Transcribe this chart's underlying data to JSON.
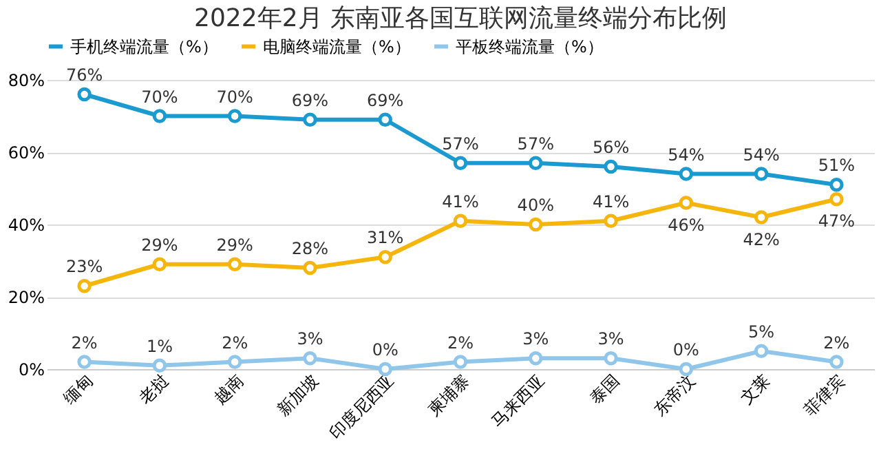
{
  "chart_data": {
    "type": "line",
    "title": "2022年2月 东南亚各国互联网流量终端分布比例",
    "categories": [
      "缅甸",
      "老挝",
      "越南",
      "新加坡",
      "印度尼西亚",
      "柬埔寨",
      "马来西亚",
      "泰国",
      "东帝汶",
      "文莱",
      "菲律宾"
    ],
    "series": [
      {
        "name": "手机终端流量（%）",
        "color": "#1b9ad0",
        "values": [
          76,
          70,
          70,
          69,
          69,
          57,
          57,
          56,
          54,
          54,
          51
        ],
        "value_labels": [
          "76%",
          "70%",
          "70%",
          "69%",
          "69%",
          "57%",
          "57%",
          "56%",
          "54%",
          "54%",
          "51%"
        ]
      },
      {
        "name": "电脑终端流量（%）",
        "color": "#f5b50a",
        "values": [
          23,
          29,
          29,
          28,
          31,
          41,
          40,
          41,
          46,
          42,
          47
        ],
        "value_labels": [
          "23%",
          "29%",
          "29%",
          "28%",
          "31%",
          "41%",
          "40%",
          "41%",
          "46%",
          "42%",
          "47%"
        ]
      },
      {
        "name": "平板终端流量（%）",
        "color": "#8fc6ea",
        "values": [
          2,
          1,
          2,
          3,
          0,
          2,
          3,
          3,
          0,
          5,
          2
        ],
        "value_labels": [
          "2%",
          "1%",
          "2%",
          "3%",
          "0%",
          "2%",
          "3%",
          "3%",
          "0%",
          "5%",
          "2%"
        ]
      }
    ],
    "ylim": [
      0,
      80
    ],
    "yticks": [
      {
        "value": 0,
        "label": "0%"
      },
      {
        "value": 20,
        "label": "20%"
      },
      {
        "value": 40,
        "label": "40%"
      },
      {
        "value": 60,
        "label": "60%"
      },
      {
        "value": 80,
        "label": "80%"
      }
    ],
    "grid": "y",
    "legend": "top",
    "marker": "circle",
    "line_style": "solid"
  }
}
